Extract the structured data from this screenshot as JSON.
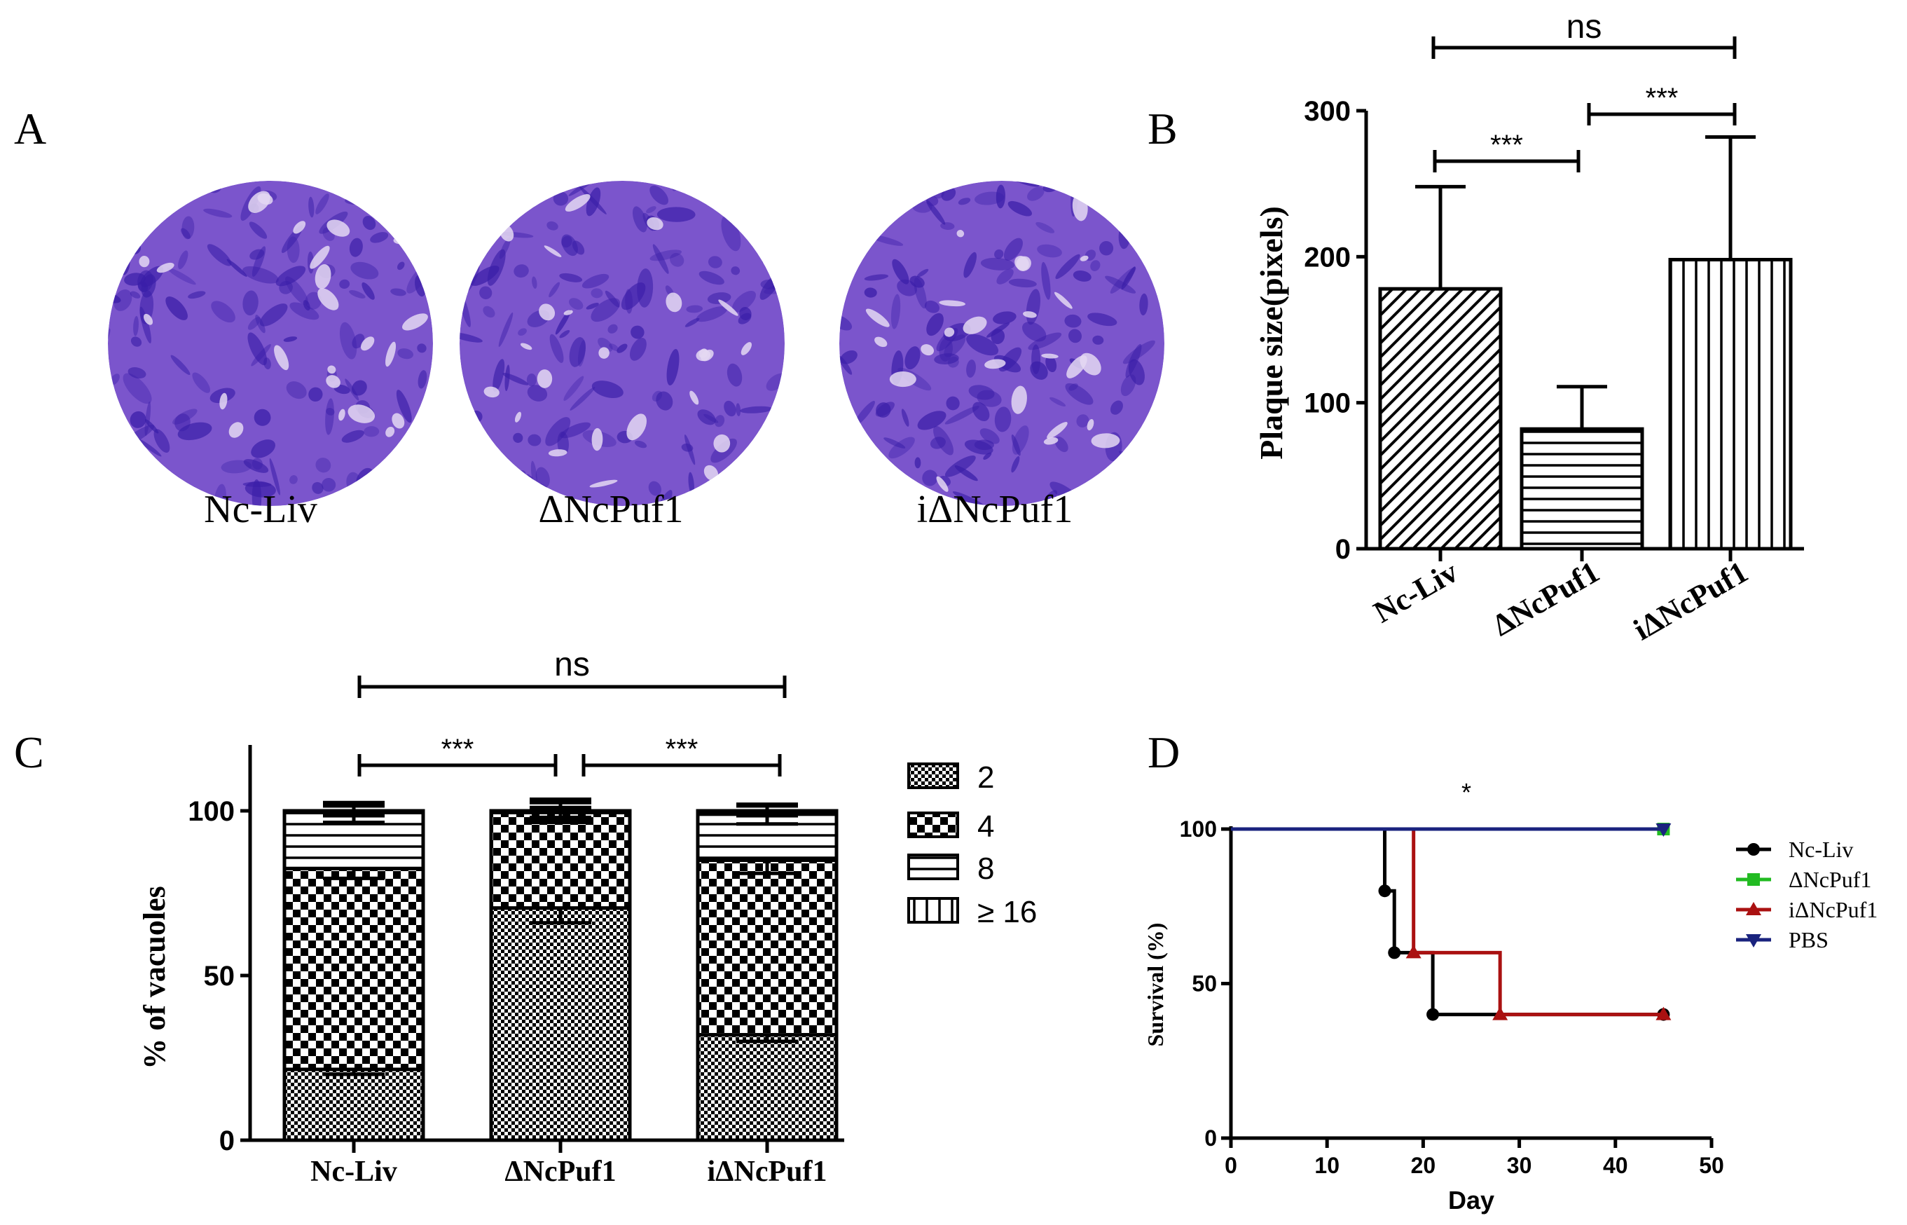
{
  "figure": {
    "panel_labels": {
      "a": "A",
      "b": "B",
      "c": "C",
      "d": "D"
    },
    "colors": {
      "plaque_base": "#7b55cc",
      "plaque_dark": "#3a1ea8",
      "plaque_clear": "#e4d8f2"
    }
  },
  "chart_data": [
    {
      "panel": "A",
      "type": "other",
      "description_labels": [
        "Nc-Liv",
        "ΔNcPuf1",
        "iΔNcPuf1"
      ]
    },
    {
      "panel": "B",
      "type": "bar",
      "title": "",
      "xlabel": "",
      "ylabel": "Plaque size(pixels)",
      "ylim": [
        0,
        300
      ],
      "yticks": [
        0,
        100,
        200,
        300
      ],
      "categories": [
        "Nc-Liv",
        "ΔNcPuf1",
        "iΔNcPuf1"
      ],
      "values": [
        178,
        82,
        198
      ],
      "errors": [
        70,
        29,
        84
      ],
      "patterns": [
        "diagonal",
        "horizontal",
        "vertical"
      ],
      "significance": [
        {
          "from": 0,
          "to": 1,
          "label": "***"
        },
        {
          "from": 1,
          "to": 2,
          "label": "***"
        },
        {
          "from": 0,
          "to": 2,
          "label": "ns"
        }
      ]
    },
    {
      "panel": "C",
      "type": "bar",
      "stacked": true,
      "title": "",
      "xlabel": "",
      "ylabel": "% of vacuoles",
      "ylim": [
        0,
        120
      ],
      "yticks": [
        0,
        50,
        100
      ],
      "categories": [
        "Nc-Liv",
        "ΔNcPuf1",
        "iΔNcPuf1"
      ],
      "series": [
        {
          "name": "2",
          "values": [
            21.5,
            70.5,
            32
          ],
          "errors": [
            1.5,
            4.5,
            2
          ],
          "pattern": "fine-check"
        },
        {
          "name": "4",
          "values": [
            61,
            29,
            53
          ],
          "errors": [
            3,
            1.5,
            4
          ],
          "pattern": "coarse-check"
        },
        {
          "name": "8",
          "values": [
            17,
            0.5,
            14
          ],
          "errors": [
            3,
            2.5,
            3
          ],
          "pattern": "horizontal"
        },
        {
          "name": "≥ 16",
          "values": [
            0.5,
            0,
            1
          ],
          "errors": [
            1.5,
            3.5,
            1.5
          ],
          "pattern": "vertical"
        }
      ],
      "significance": [
        {
          "from": 0,
          "to": 1,
          "label": "***"
        },
        {
          "from": 1,
          "to": 2,
          "label": "***"
        },
        {
          "from": 0,
          "to": 2,
          "label": "ns"
        }
      ]
    },
    {
      "panel": "D",
      "type": "line",
      "step": true,
      "title": "*",
      "xlabel": "Day",
      "ylabel": "Survival (%)",
      "xlim": [
        0,
        50
      ],
      "ylim": [
        0,
        100
      ],
      "xticks": [
        0,
        10,
        20,
        30,
        40,
        50
      ],
      "yticks": [
        0,
        50,
        100
      ],
      "legend_position": "right",
      "series": [
        {
          "name": "Nc-Liv",
          "color": "#000000",
          "marker": "circle",
          "x": [
            0,
            16,
            17,
            21,
            45
          ],
          "y": [
            100,
            80,
            60,
            40,
            40
          ],
          "points": [
            [
              16,
              80
            ],
            [
              17,
              60
            ],
            [
              21,
              40
            ],
            [
              45,
              40
            ]
          ]
        },
        {
          "name": "ΔNcPuf1",
          "color": "#22bb22",
          "marker": "square",
          "x": [
            0,
            45
          ],
          "y": [
            100,
            100
          ],
          "points": [
            [
              45,
              100
            ]
          ]
        },
        {
          "name": "iΔNcPuf1",
          "color": "#aa1111",
          "marker": "triangle-up",
          "x": [
            0,
            19,
            28,
            45
          ],
          "y": [
            100,
            60,
            40,
            40
          ],
          "points": [
            [
              19,
              60
            ],
            [
              28,
              40
            ],
            [
              45,
              40
            ]
          ]
        },
        {
          "name": "PBS",
          "color": "#1a237e",
          "marker": "triangle-down",
          "x": [
            0,
            45
          ],
          "y": [
            100,
            100
          ],
          "points": [
            [
              45,
              100
            ]
          ]
        }
      ]
    }
  ]
}
